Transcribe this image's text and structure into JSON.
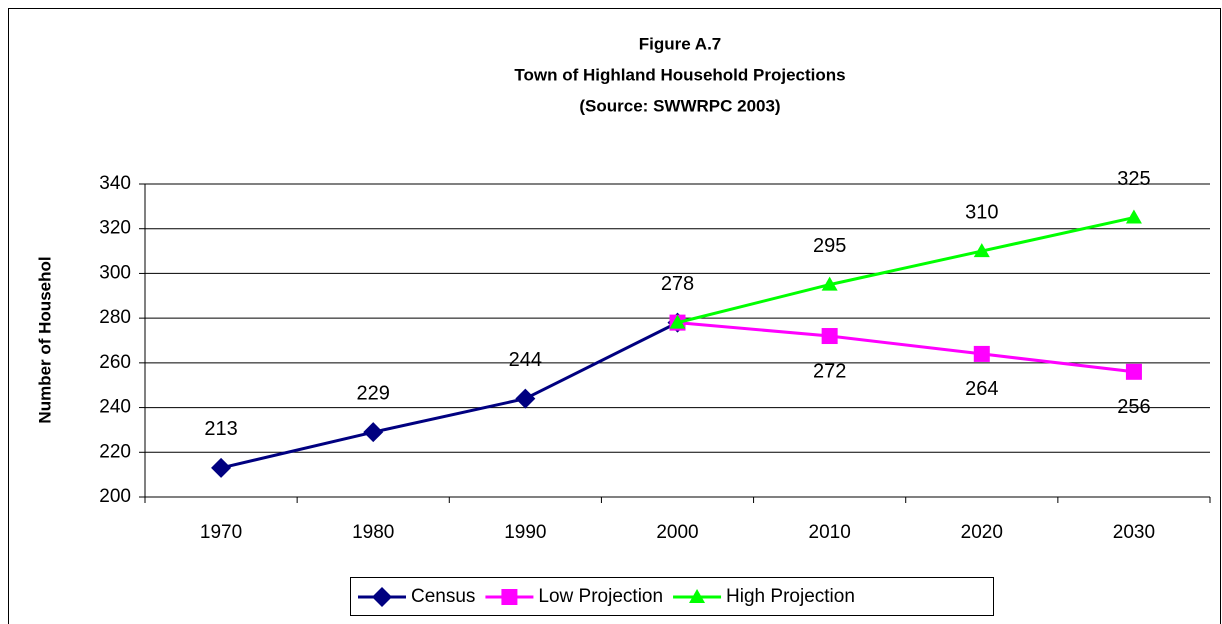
{
  "chart_data": {
    "type": "line",
    "title": [
      "Figure A.7",
      "Town of Highland Household Projections",
      "(Source:  SWWRPC 2003)"
    ],
    "y_label": "Number of Househol",
    "categories": [
      "1970",
      "1980",
      "1990",
      "2000",
      "2010",
      "2020",
      "2030"
    ],
    "series": [
      {
        "name": "Census",
        "color": "#000080",
        "marker": "diamond",
        "values": [
          213,
          229,
          244,
          278,
          null,
          null,
          null
        ]
      },
      {
        "name": "Low Projection",
        "color": "#ff00ff",
        "marker": "square",
        "values": [
          null,
          null,
          null,
          278,
          272,
          264,
          256
        ]
      },
      {
        "name": "High Projection",
        "color": "#00ff00",
        "marker": "triangle",
        "values": [
          null,
          null,
          null,
          278,
          295,
          310,
          325
        ]
      }
    ],
    "ylim": [
      200,
      340
    ],
    "yticks": [
      200,
      220,
      240,
      260,
      280,
      300,
      320,
      340
    ],
    "grid": true,
    "legend": "bottom"
  }
}
